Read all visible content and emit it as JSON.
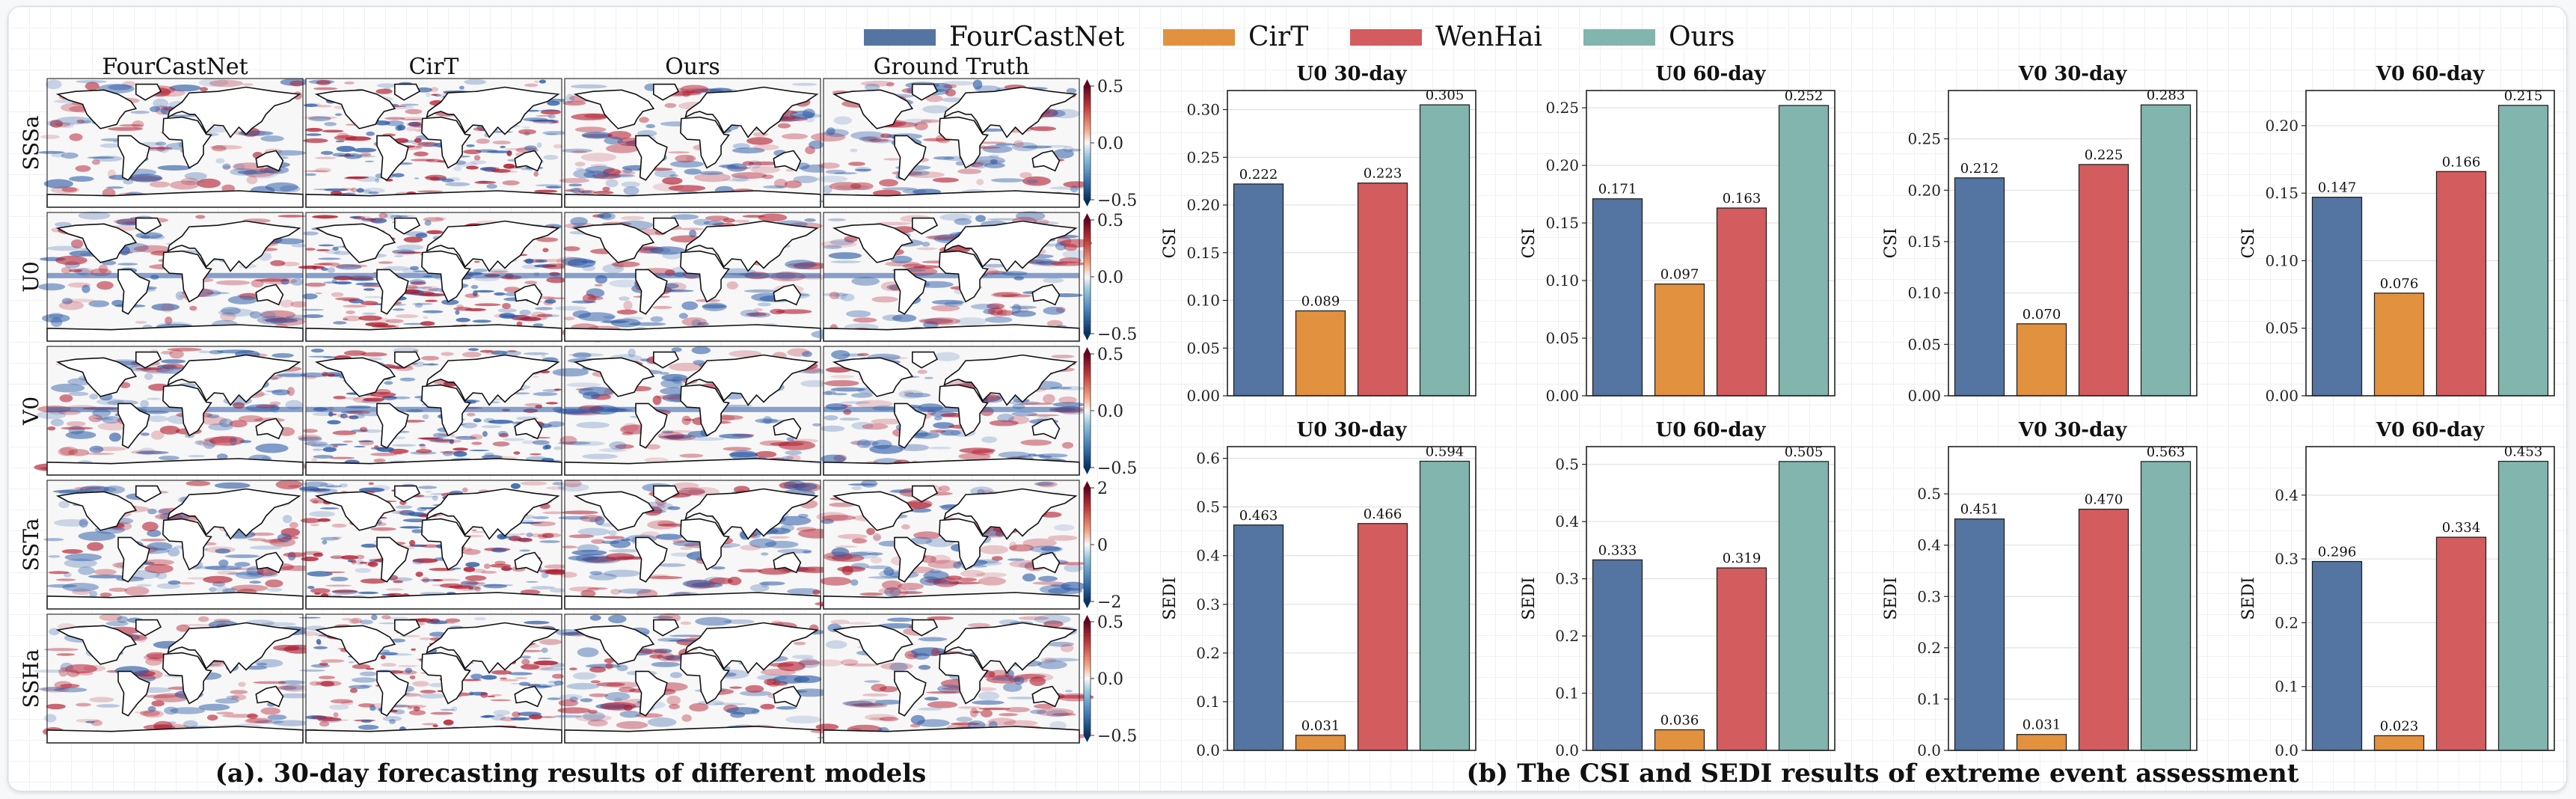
{
  "left_panel": {
    "columns": [
      "FourCastNet",
      "CirT",
      "Ours",
      "Ground Truth"
    ],
    "caption": "(a). 30-day forecasting results of different models",
    "rows": [
      {
        "label": "SSSa",
        "ticks": [
          "0.5",
          "0.0",
          "−0.5"
        ]
      },
      {
        "label": "U0",
        "ticks": [
          "0.5",
          "0.0",
          "−0.5"
        ]
      },
      {
        "label": "V0",
        "ticks": [
          "0.5",
          "0.0",
          "−0.5"
        ]
      },
      {
        "label": "SSTa",
        "ticks": [
          "2",
          "0",
          "−2"
        ]
      },
      {
        "label": "SSHa",
        "ticks": [
          "0.5",
          "0.0",
          "−0.5"
        ]
      }
    ],
    "colors": {
      "neg": "#2b5aa6",
      "pos": "#b2182b",
      "land": "#ffffff",
      "coast": "#111111"
    }
  },
  "right_panel": {
    "caption": "(b) The CSI and SEDI results of extreme event assessment",
    "legend": [
      {
        "name": "FourCastNet",
        "color": "#5475a1"
      },
      {
        "name": "CirT",
        "color": "#e2913e"
      },
      {
        "name": "WenHai",
        "color": "#d35c5e"
      },
      {
        "name": "Ours",
        "color": "#82b5ad"
      }
    ]
  },
  "chart_data": [
    {
      "type": "bar",
      "title": "U0 30-day",
      "ylabel": "CSI",
      "categories": [
        "FourCastNet",
        "CirT",
        "WenHai",
        "Ours"
      ],
      "values": [
        0.222,
        0.089,
        0.223,
        0.305
      ],
      "value_labels": [
        "0.222",
        "0.089",
        "0.223",
        "0.305"
      ],
      "ylim": [
        0,
        0.32
      ],
      "yticks": [
        0.0,
        0.05,
        0.1,
        0.15,
        0.2,
        0.25,
        0.3
      ],
      "ytick_labels": [
        "0.00",
        "0.05",
        "0.10",
        "0.15",
        "0.20",
        "0.25",
        "0.30"
      ],
      "grid": true
    },
    {
      "type": "bar",
      "title": "U0 60-day",
      "ylabel": "CSI",
      "categories": [
        "FourCastNet",
        "CirT",
        "WenHai",
        "Ours"
      ],
      "values": [
        0.171,
        0.097,
        0.163,
        0.252
      ],
      "value_labels": [
        "0.171",
        "0.097",
        "0.163",
        "0.252"
      ],
      "ylim": [
        0,
        0.265
      ],
      "yticks": [
        0.0,
        0.05,
        0.1,
        0.15,
        0.2,
        0.25
      ],
      "ytick_labels": [
        "0.00",
        "0.05",
        "0.10",
        "0.15",
        "0.20",
        "0.25"
      ],
      "grid": true
    },
    {
      "type": "bar",
      "title": "V0 30-day",
      "ylabel": "CSI",
      "categories": [
        "FourCastNet",
        "CirT",
        "WenHai",
        "Ours"
      ],
      "values": [
        0.212,
        0.07,
        0.225,
        0.283
      ],
      "value_labels": [
        "0.212",
        "0.070",
        "0.225",
        "0.283"
      ],
      "ylim": [
        0,
        0.297
      ],
      "yticks": [
        0.0,
        0.05,
        0.1,
        0.15,
        0.2,
        0.25
      ],
      "ytick_labels": [
        "0.00",
        "0.05",
        "0.10",
        "0.15",
        "0.20",
        "0.25"
      ],
      "grid": true
    },
    {
      "type": "bar",
      "title": "V0 60-day",
      "ylabel": "CSI",
      "categories": [
        "FourCastNet",
        "CirT",
        "WenHai",
        "Ours"
      ],
      "values": [
        0.147,
        0.076,
        0.166,
        0.215
      ],
      "value_labels": [
        "0.147",
        "0.076",
        "0.166",
        "0.215"
      ],
      "ylim": [
        0,
        0.226
      ],
      "yticks": [
        0.0,
        0.05,
        0.1,
        0.15,
        0.2
      ],
      "ytick_labels": [
        "0.00",
        "0.05",
        "0.10",
        "0.15",
        "0.20"
      ],
      "grid": true
    },
    {
      "type": "bar",
      "title": "U0 30-day",
      "ylabel": "SEDI",
      "categories": [
        "FourCastNet",
        "CirT",
        "WenHai",
        "Ours"
      ],
      "values": [
        0.463,
        0.031,
        0.466,
        0.594
      ],
      "value_labels": [
        "0.463",
        "0.031",
        "0.466",
        "0.594"
      ],
      "ylim": [
        0,
        0.624
      ],
      "yticks": [
        0.0,
        0.1,
        0.2,
        0.3,
        0.4,
        0.5,
        0.6
      ],
      "ytick_labels": [
        "0.0",
        "0.1",
        "0.2",
        "0.3",
        "0.4",
        "0.5",
        "0.6"
      ],
      "grid": true
    },
    {
      "type": "bar",
      "title": "U0 60-day",
      "ylabel": "SEDI",
      "categories": [
        "FourCastNet",
        "CirT",
        "WenHai",
        "Ours"
      ],
      "values": [
        0.333,
        0.036,
        0.319,
        0.505
      ],
      "value_labels": [
        "0.333",
        "0.036",
        "0.319",
        "0.505"
      ],
      "ylim": [
        0,
        0.531
      ],
      "yticks": [
        0.0,
        0.1,
        0.2,
        0.3,
        0.4,
        0.5
      ],
      "ytick_labels": [
        "0.0",
        "0.1",
        "0.2",
        "0.3",
        "0.4",
        "0.5"
      ],
      "grid": true
    },
    {
      "type": "bar",
      "title": "V0 30-day",
      "ylabel": "SEDI",
      "categories": [
        "FourCastNet",
        "CirT",
        "WenHai",
        "Ours"
      ],
      "values": [
        0.451,
        0.031,
        0.47,
        0.563
      ],
      "value_labels": [
        "0.451",
        "0.031",
        "0.470",
        "0.563"
      ],
      "ylim": [
        0,
        0.592
      ],
      "yticks": [
        0.0,
        0.1,
        0.2,
        0.3,
        0.4,
        0.5
      ],
      "ytick_labels": [
        "0.0",
        "0.1",
        "0.2",
        "0.3",
        "0.4",
        "0.5"
      ],
      "grid": true
    },
    {
      "type": "bar",
      "title": "V0 60-day",
      "ylabel": "SEDI",
      "categories": [
        "FourCastNet",
        "CirT",
        "WenHai",
        "Ours"
      ],
      "values": [
        0.296,
        0.023,
        0.334,
        0.453
      ],
      "value_labels": [
        "0.296",
        "0.023",
        "0.334",
        "0.453"
      ],
      "ylim": [
        0,
        0.476
      ],
      "yticks": [
        0.0,
        0.1,
        0.2,
        0.3,
        0.4
      ],
      "ytick_labels": [
        "0.0",
        "0.1",
        "0.2",
        "0.3",
        "0.4"
      ],
      "grid": true
    }
  ]
}
